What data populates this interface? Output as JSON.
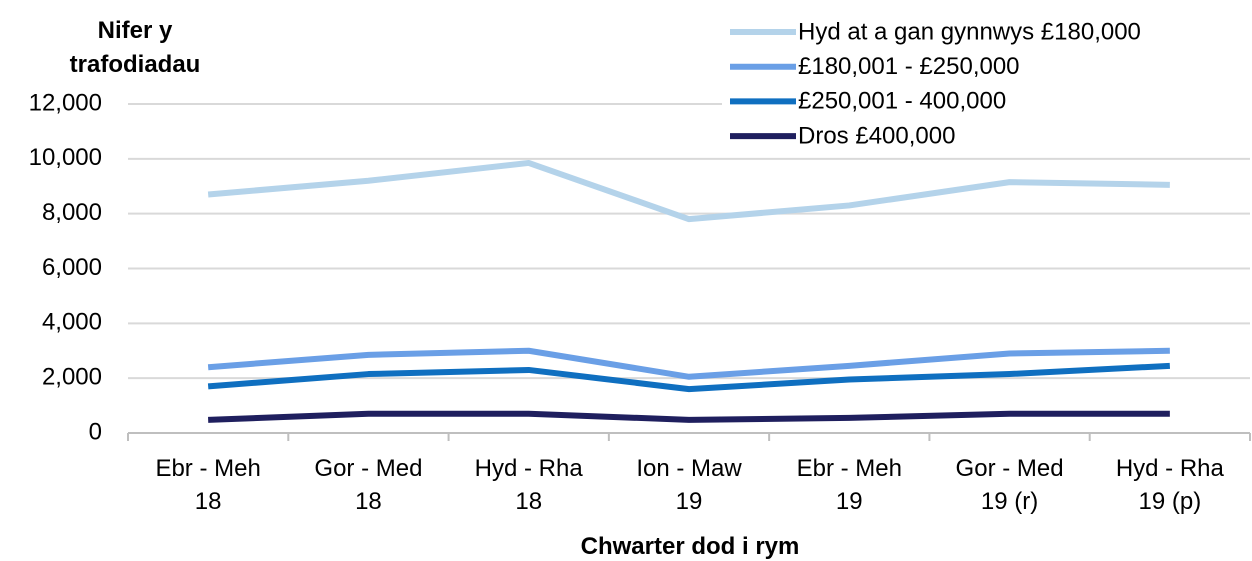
{
  "chart_data": {
    "type": "line",
    "y_axis_title": "Nifer y\ntrafodiadau",
    "x_axis_title": "Chwarter dod i rym",
    "categories": [
      "Ebr - Meh\n18",
      "Gor - Med\n18",
      "Hyd - Rha\n18",
      "Ion - Maw\n19",
      "Ebr - Meh\n19",
      "Gor - Med\n19 (r)",
      "Hyd - Rha\n19 (p)"
    ],
    "series": [
      {
        "name": "Hyd at a gan gynnwys £180,000",
        "color": "#b4d3ea",
        "values": [
          8700,
          9200,
          9850,
          7800,
          8300,
          9150,
          9050
        ]
      },
      {
        "name": "£180,001 - £250,000",
        "color": "#6a9fe6",
        "values": [
          2400,
          2850,
          3000,
          2050,
          2450,
          2900,
          3000
        ]
      },
      {
        "name": "£250,001 - 400,000",
        "color": "#0f6fc0",
        "values": [
          1700,
          2150,
          2300,
          1600,
          1950,
          2150,
          2450
        ]
      },
      {
        "name": "Dros £400,000",
        "color": "#1f1f5e",
        "values": [
          480,
          700,
          700,
          480,
          550,
          700,
          700
        ]
      }
    ],
    "ylim": [
      0,
      12000
    ],
    "yticks": [
      0,
      {
        "value": 2000,
        "label": "2,000"
      },
      {
        "value": 4000,
        "label": "4,000"
      },
      {
        "value": 6000,
        "label": "6,000"
      },
      {
        "value": 8000,
        "label": "8,000"
      },
      {
        "value": 10000,
        "label": "10,000"
      },
      {
        "value": 12000,
        "label": "12,000"
      }
    ],
    "grid": true,
    "legend": "upper right"
  }
}
